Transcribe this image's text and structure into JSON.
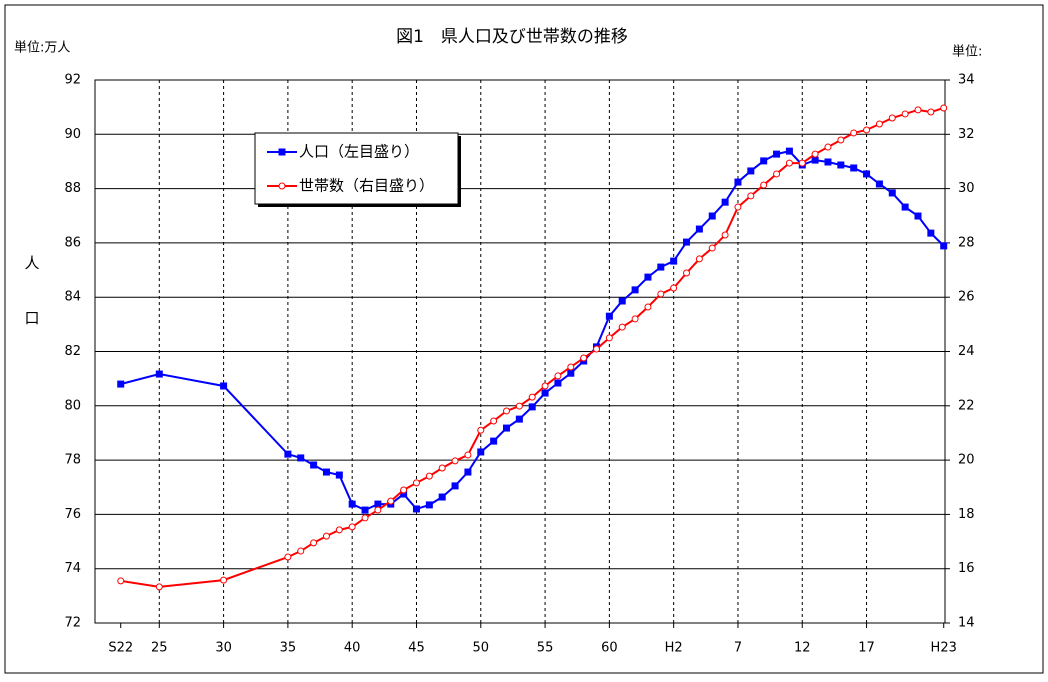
{
  "chart_data": {
    "type": "line",
    "title": "図1　県人口及び世帯数の推移",
    "ylabel": "人口",
    "y_unit": "単位:万人",
    "y2_unit": "単位:",
    "x": [
      1947,
      1950,
      1955,
      1960,
      1961,
      1962,
      1963,
      1964,
      1965,
      1966,
      1967,
      1968,
      1969,
      1970,
      1971,
      1972,
      1973,
      1974,
      1975,
      1976,
      1977,
      1978,
      1979,
      1980,
      1981,
      1982,
      1983,
      1984,
      1985,
      1986,
      1987,
      1988,
      1989,
      1990,
      1991,
      1992,
      1993,
      1994,
      1995,
      1996,
      1997,
      1998,
      1999,
      2000,
      2001,
      2002,
      2003,
      2004,
      2005,
      2006,
      2007,
      2008,
      2009,
      2010,
      2011
    ],
    "series": [
      {
        "name": "人口（左目盛り）",
        "color": "#0000ff",
        "marker": "square",
        "values": [
          80.8,
          81.17,
          80.73,
          78.22,
          78.08,
          77.82,
          77.56,
          77.45,
          76.38,
          76.16,
          76.38,
          76.38,
          76.75,
          76.2,
          76.35,
          76.64,
          77.05,
          77.56,
          78.3,
          78.7,
          79.18,
          79.51,
          79.96,
          80.47,
          80.84,
          81.2,
          81.65,
          82.17,
          83.3,
          83.86,
          84.27,
          84.74,
          85.11,
          85.33,
          86.03,
          86.51,
          86.99,
          87.5,
          88.24,
          88.65,
          89.02,
          89.27,
          89.38,
          88.87,
          89.05,
          88.98,
          88.87,
          88.76,
          88.54,
          88.17,
          87.84,
          87.32,
          86.99,
          86.36,
          85.89
        ]
      },
      {
        "name": "世帯数（右目盛り）",
        "color": "#ff0000",
        "marker": "circle",
        "axis": "y2",
        "values": [
          15.55,
          15.33,
          15.58,
          16.43,
          16.65,
          16.95,
          17.2,
          17.43,
          17.54,
          17.87,
          18.16,
          18.49,
          18.9,
          19.16,
          19.41,
          19.71,
          19.97,
          20.19,
          21.1,
          21.44,
          21.81,
          21.99,
          22.32,
          22.73,
          23.1,
          23.43,
          23.76,
          24.09,
          24.5,
          24.9,
          25.2,
          25.64,
          26.12,
          26.34,
          26.89,
          27.41,
          27.81,
          28.29,
          29.32,
          29.73,
          30.13,
          30.54,
          30.94,
          30.94,
          31.27,
          31.53,
          31.79,
          32.05,
          32.16,
          32.38,
          32.6,
          32.75,
          32.9,
          32.82,
          32.97
        ]
      }
    ],
    "xlim": [
      1945,
      2011.1
    ],
    "xticks": [
      {
        "value": 1947,
        "label": "S22"
      },
      {
        "value": 1950,
        "label": "25"
      },
      {
        "value": 1955,
        "label": "30"
      },
      {
        "value": 1960,
        "label": "35"
      },
      {
        "value": 1965,
        "label": "40"
      },
      {
        "value": 1970,
        "label": "45"
      },
      {
        "value": 1975,
        "label": "50"
      },
      {
        "value": 1980,
        "label": "55"
      },
      {
        "value": 1985,
        "label": "60"
      },
      {
        "value": 1990,
        "label": "H2"
      },
      {
        "value": 1995,
        "label": "7"
      },
      {
        "value": 2000,
        "label": "12"
      },
      {
        "value": 2005,
        "label": "17"
      },
      {
        "value": 2011,
        "label": "H23"
      }
    ],
    "ylim": [
      72,
      92
    ],
    "yticks": [
      72,
      74,
      76,
      78,
      80,
      82,
      84,
      86,
      88,
      90,
      92
    ],
    "y2lim": [
      14,
      34
    ],
    "y2ticks": [
      14,
      16,
      18,
      20,
      22,
      24,
      26,
      28,
      30,
      32,
      34
    ],
    "grid": true
  }
}
